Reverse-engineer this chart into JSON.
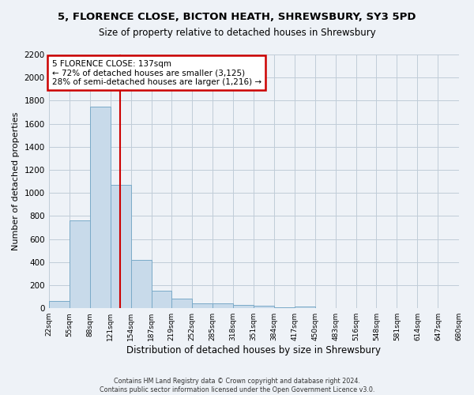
{
  "title": "5, FLORENCE CLOSE, BICTON HEATH, SHREWSBURY, SY3 5PD",
  "subtitle": "Size of property relative to detached houses in Shrewsbury",
  "xlabel": "Distribution of detached houses by size in Shrewsbury",
  "ylabel": "Number of detached properties",
  "bar_edges": [
    22,
    55,
    88,
    121,
    154,
    187,
    219,
    252,
    285,
    318,
    351,
    384,
    417,
    450,
    483,
    516,
    548,
    581,
    614,
    647,
    680
  ],
  "bar_heights": [
    60,
    760,
    1750,
    1070,
    420,
    155,
    85,
    45,
    45,
    30,
    20,
    10,
    15,
    0,
    0,
    0,
    0,
    0,
    0,
    0
  ],
  "bar_color": "#c8daea",
  "bar_edgecolor": "#7aaac8",
  "property_line_x": 137,
  "annotation_line1": "5 FLORENCE CLOSE: 137sqm",
  "annotation_line2": "← 72% of detached houses are smaller (3,125)",
  "annotation_line3": "28% of semi-detached houses are larger (1,216) →",
  "annotation_box_color": "#ffffff",
  "annotation_box_edgecolor": "#cc0000",
  "property_line_color": "#cc0000",
  "ylim": [
    0,
    2200
  ],
  "yticks": [
    0,
    200,
    400,
    600,
    800,
    1000,
    1200,
    1400,
    1600,
    1800,
    2000,
    2200
  ],
  "tick_labels": [
    "22sqm",
    "55sqm",
    "88sqm",
    "121sqm",
    "154sqm",
    "187sqm",
    "219sqm",
    "252sqm",
    "285sqm",
    "318sqm",
    "351sqm",
    "384sqm",
    "417sqm",
    "450sqm",
    "483sqm",
    "516sqm",
    "548sqm",
    "581sqm",
    "614sqm",
    "647sqm",
    "680sqm"
  ],
  "footer1": "Contains HM Land Registry data © Crown copyright and database right 2024.",
  "footer2": "Contains public sector information licensed under the Open Government Licence v3.0.",
  "bg_color": "#eef2f7",
  "grid_color": "#c0ccd8",
  "title_fontsize": 9,
  "subtitle_fontsize": 8.5
}
